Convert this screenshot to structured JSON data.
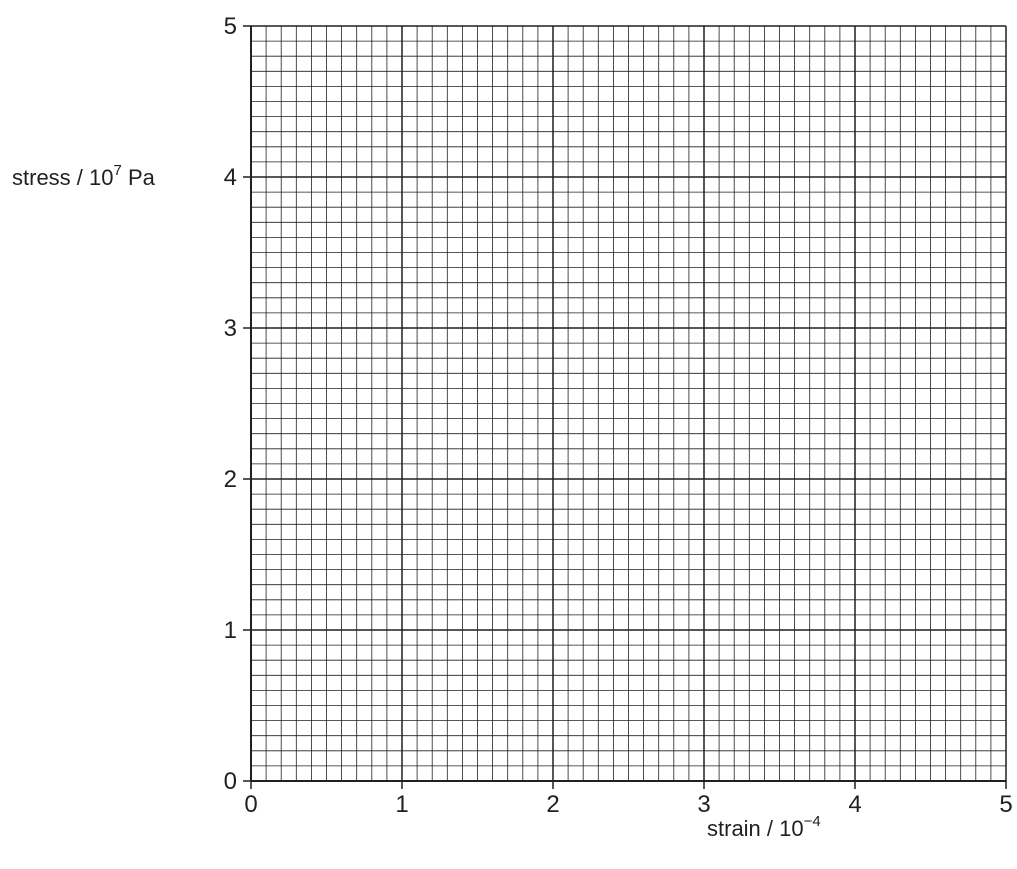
{
  "chart_data": {
    "type": "scatter",
    "title": "",
    "x": [],
    "y": [],
    "xlim": [
      0,
      5
    ],
    "ylim": [
      0,
      5
    ],
    "xticks": [
      "0",
      "1",
      "2",
      "3",
      "4",
      "5"
    ],
    "yticks": [
      "0",
      "1",
      "2",
      "3",
      "4",
      "5"
    ],
    "xlabel": {
      "text": "strain / 10",
      "exponent": "−4"
    },
    "ylabel": {
      "text": "stress / 10",
      "exponent": "7",
      "unit": " Pa"
    },
    "grid": {
      "major_per_unit": 1,
      "minor_per_unit": 10
    },
    "colors": {
      "ink": "#231f20"
    }
  }
}
